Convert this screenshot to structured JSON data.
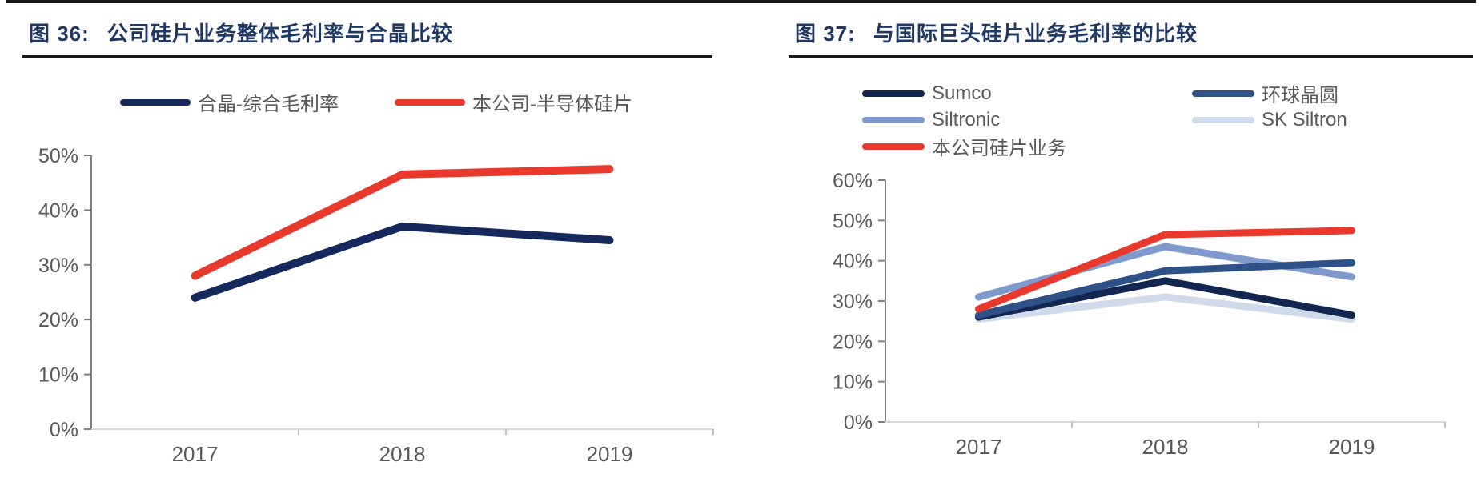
{
  "figures": [
    {
      "label": "图 36:",
      "title": "公司硅片业务整体毛利率与合晶比较"
    },
    {
      "label": "图 37:",
      "title": "与国际巨头硅片业务毛利率的比较"
    }
  ],
  "colors": {
    "title_navy": "#1f3864",
    "rule_black": "#1a1a1a",
    "axis_y_grey": "#7f7f7f",
    "axis_x_grey": "#d9d9d9",
    "axis_tick_grey": "#bfbfbf",
    "label_grey": "#595959",
    "brand_red": "#e8392c",
    "brand_navy": "#16295c"
  },
  "chart_data": [
    {
      "type": "line",
      "title": "公司硅片业务整体毛利率与合晶比较",
      "categories": [
        "2017",
        "2018",
        "2019"
      ],
      "series": [
        {
          "name": "合晶-综合毛利率",
          "color": "#16295c",
          "values": [
            24,
            37,
            34.5
          ]
        },
        {
          "name": "本公司-半导体硅片",
          "color": "#e8392c",
          "values": [
            28,
            46.5,
            47.5
          ]
        }
      ],
      "ylim": [
        0,
        50
      ],
      "ytick_step": 10,
      "ytick_labels": [
        "0%",
        "10%",
        "20%",
        "30%",
        "40%",
        "50%"
      ],
      "xlabel": "",
      "ylabel": "",
      "grid": false,
      "legend_position": "top"
    },
    {
      "type": "line",
      "title": "与国际巨头硅片业务毛利率的比较",
      "categories": [
        "2017",
        "2018",
        "2019"
      ],
      "series": [
        {
          "name": "Sumco",
          "color": "#12264f",
          "values": [
            26,
            35,
            26.5
          ]
        },
        {
          "name": "环球晶圆",
          "color": "#2e5187",
          "values": [
            26.5,
            37.5,
            39.5
          ]
        },
        {
          "name": "Siltronic",
          "color": "#7e99cc",
          "values": [
            31,
            43.5,
            36
          ]
        },
        {
          "name": "SK Siltron",
          "color": "#cfdbea",
          "values": [
            25.5,
            31,
            25.5
          ]
        },
        {
          "name": "本公司硅片业务",
          "color": "#e8392c",
          "values": [
            28,
            46.5,
            47.5
          ]
        }
      ],
      "ylim": [
        0,
        60
      ],
      "ytick_step": 10,
      "ytick_labels": [
        "0%",
        "10%",
        "20%",
        "30%",
        "40%",
        "50%",
        "60%"
      ],
      "xlabel": "",
      "ylabel": "",
      "grid": false,
      "legend_position": "top"
    }
  ]
}
